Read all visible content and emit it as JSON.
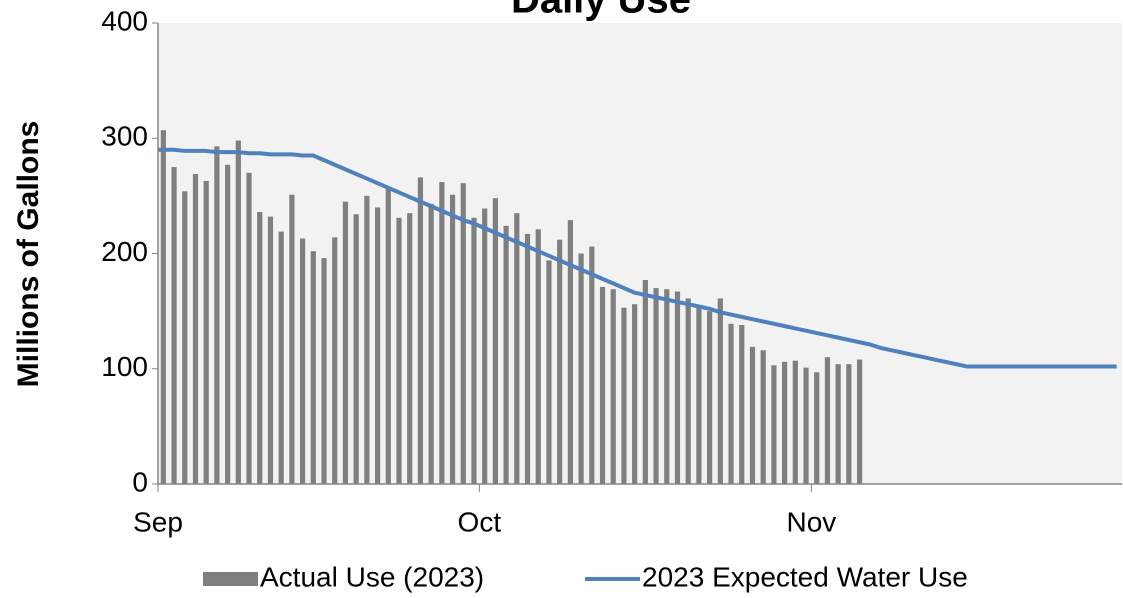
{
  "chart_data": {
    "type": "bar",
    "title": "Daily Use",
    "y_label": "Millions of Gallons",
    "categories": [
      "Sep",
      null,
      null,
      null,
      null,
      null,
      null,
      null,
      null,
      null,
      null,
      null,
      null,
      null,
      null,
      null,
      null,
      null,
      null,
      null,
      null,
      null,
      null,
      null,
      null,
      null,
      null,
      null,
      null,
      null,
      "Oct",
      null,
      null,
      null,
      null,
      null,
      null,
      null,
      null,
      null,
      null,
      null,
      null,
      null,
      null,
      null,
      null,
      null,
      null,
      null,
      null,
      null,
      null,
      null,
      null,
      null,
      null,
      null,
      null,
      null,
      null,
      "Nov",
      null,
      null,
      null,
      null,
      null,
      null,
      null,
      null,
      null,
      null,
      null,
      null,
      null,
      null,
      null,
      null,
      null,
      null,
      null,
      null,
      null,
      null,
      null,
      null,
      null,
      null,
      null,
      null
    ],
    "series": [
      {
        "name": "Actual Use (2023)",
        "type": "bar",
        "color": "#7f7f7f",
        "values": [
          307,
          275,
          254,
          269,
          263,
          293,
          277,
          298,
          270,
          236,
          232,
          219,
          251,
          213,
          202,
          196,
          214,
          245,
          234,
          250,
          240,
          257,
          231,
          235,
          266,
          243,
          262,
          251,
          261,
          231,
          239,
          248,
          224,
          235,
          217,
          221,
          194,
          212,
          229,
          200,
          206,
          171,
          169,
          153,
          156,
          177,
          170,
          169,
          167,
          161,
          155,
          150,
          161,
          139,
          138,
          119,
          116,
          103,
          106,
          107,
          101,
          97,
          110,
          104,
          104,
          108,
          null,
          null,
          null,
          null,
          null,
          null,
          null,
          null,
          null,
          null,
          null,
          null,
          null,
          null,
          null,
          null,
          null,
          null,
          null,
          null,
          null,
          null,
          null,
          null
        ]
      },
      {
        "name": "2023 Expected Water Use",
        "type": "line",
        "color": "#4f81bd",
        "values": [
          290,
          290,
          289,
          289,
          289,
          288,
          288,
          288,
          287,
          287,
          286,
          286,
          286,
          285,
          285,
          281,
          277,
          273,
          269,
          265,
          261,
          257,
          253,
          249,
          245,
          241,
          237,
          233,
          229,
          226,
          222,
          218,
          214,
          210,
          206,
          202,
          198,
          194,
          190,
          186,
          182,
          178,
          174,
          170,
          166,
          164,
          162,
          160,
          158,
          156,
          154,
          152,
          149,
          147,
          145,
          143,
          141,
          139,
          137,
          135,
          133,
          131,
          129,
          127,
          125,
          123,
          121,
          118,
          116,
          114,
          112,
          110,
          108,
          106,
          104,
          102,
          102,
          102,
          102,
          102,
          102,
          102,
          102,
          102,
          102,
          102,
          102,
          102,
          102,
          102
        ]
      }
    ],
    "ylim": [
      0,
      400
    ],
    "yticks": [
      0,
      100,
      200,
      300,
      400
    ],
    "legend": "bottom"
  }
}
